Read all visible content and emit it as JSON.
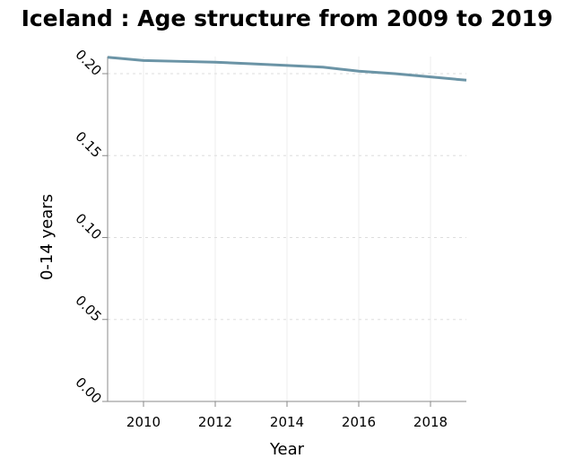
{
  "chart_data": {
    "type": "line",
    "title": "Iceland : Age structure from 2009 to 2019",
    "xlabel": "Year",
    "ylabel": "0-14 years",
    "xlim": [
      2009,
      2019
    ],
    "ylim": [
      0,
      0.2
    ],
    "x_ticks": [
      2010,
      2012,
      2014,
      2016,
      2018
    ],
    "x_tick_labels": [
      "2010",
      "2012",
      "2014",
      "2016",
      "2018"
    ],
    "y_ticks": [
      0,
      0.05,
      0.1,
      0.15,
      0.2
    ],
    "y_tick_labels": [
      "0.00",
      "0.05",
      "0.10",
      "0.15",
      "0.20"
    ],
    "grid": true,
    "series": [
      {
        "x": [
          2009,
          2010,
          2011,
          2012,
          2013,
          2014,
          2015,
          2016,
          2017,
          2018,
          2019
        ],
        "values": [
          0.21,
          0.208,
          0.2075,
          0.207,
          0.206,
          0.205,
          0.204,
          0.2015,
          0.2,
          0.198,
          0.196
        ],
        "color": "#6b94a6"
      }
    ]
  }
}
